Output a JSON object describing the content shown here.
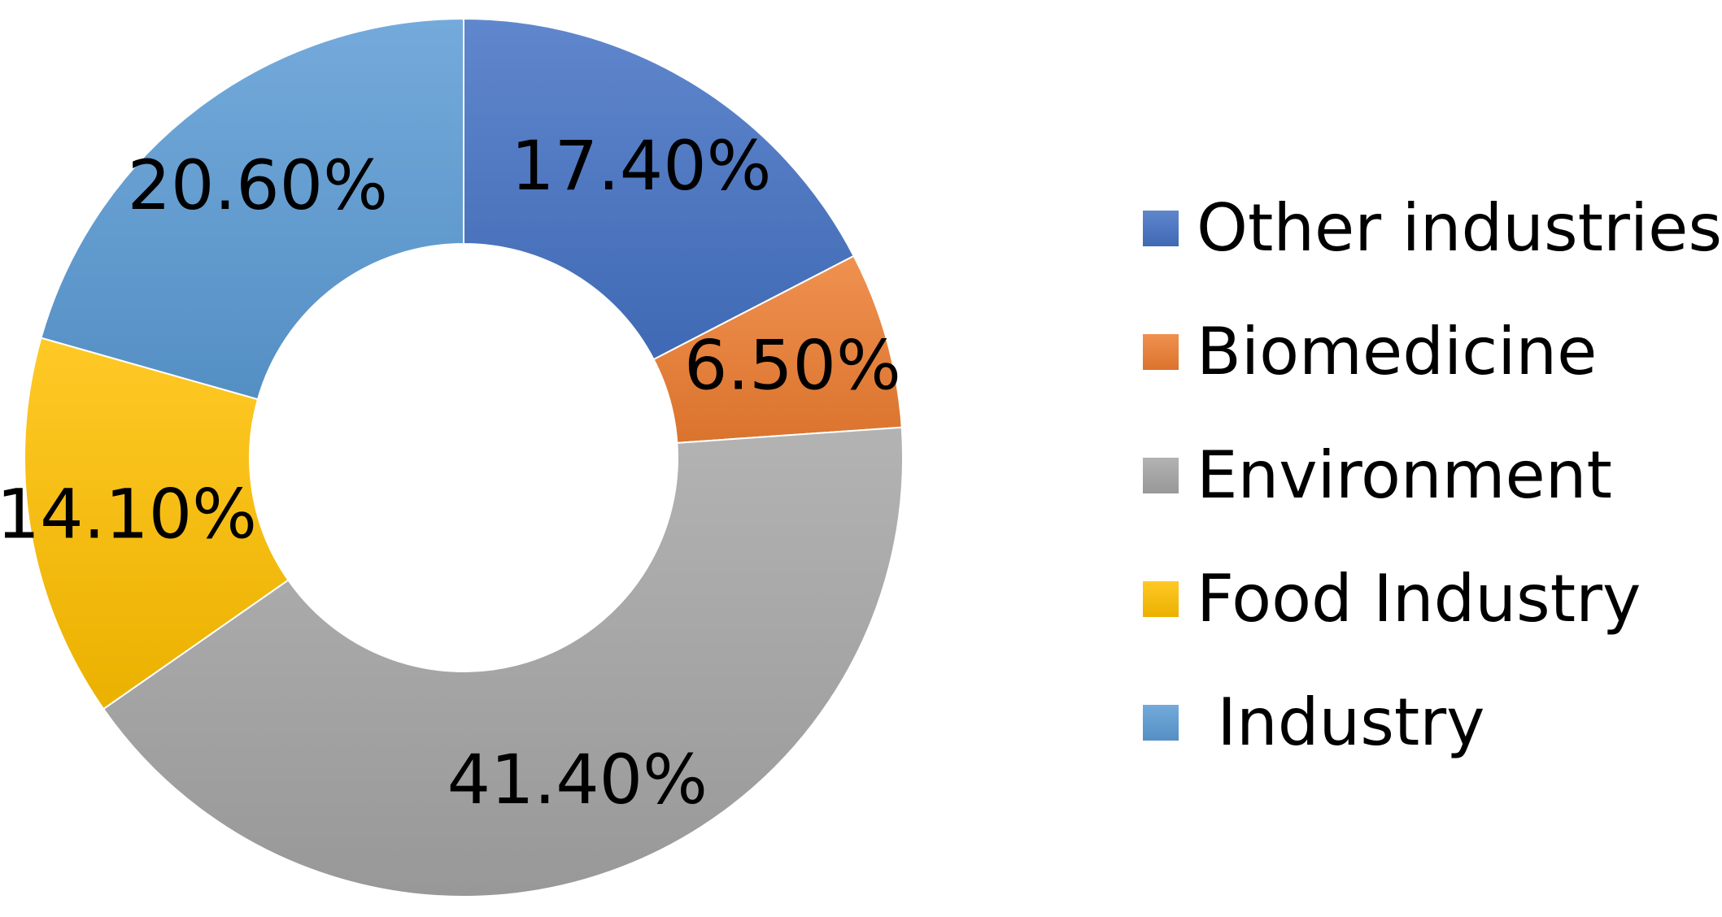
{
  "chart_data": {
    "type": "donut",
    "title": "",
    "series": [
      {
        "name": "Other industries",
        "value": 17.4,
        "label": "17.40%",
        "color": "#4472C4"
      },
      {
        "name": "Biomedicine",
        "value": 6.5,
        "label": "6.50%",
        "color": "#ED7D31"
      },
      {
        "name": "Environment",
        "value": 41.4,
        "label": "41.40%",
        "color": "#A5A5A5"
      },
      {
        "name": "Food Industry",
        "value": 14.1,
        "label": "14.10%",
        "color": "#FFC000"
      },
      {
        "name": " Industry",
        "value": 20.6,
        "label": "20.60%",
        "color": "#5B9BD5"
      }
    ],
    "legend_position": "right"
  }
}
